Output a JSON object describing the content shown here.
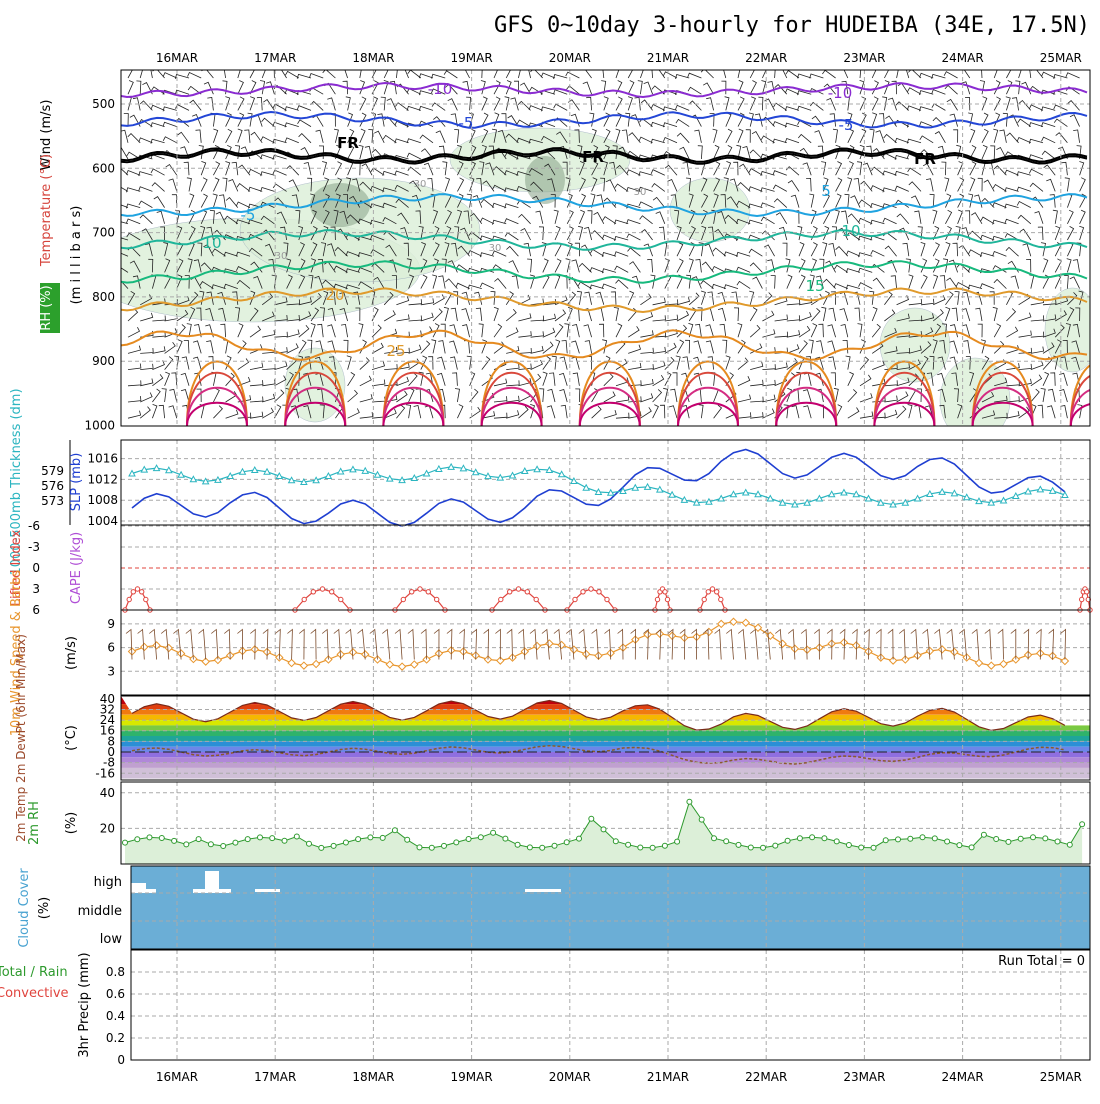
{
  "title": "GFS 0~10day 3-hourly for HUDEIBA (34E, 17.5N)",
  "top_dates": [
    "16MAR",
    "17MAR",
    "18MAR",
    "19MAR",
    "20MAR",
    "21MAR",
    "22MAR",
    "23MAR",
    "24MAR",
    "25MAR"
  ],
  "bottom_dates": [
    "16MAR",
    "17MAR",
    "18MAR",
    "19MAR",
    "20MAR",
    "21MAR",
    "22MAR",
    "23MAR",
    "24MAR",
    "25MAR"
  ],
  "panels": {
    "upper": {
      "ylabel_wind": "Wind (m/s)",
      "ylabel_temp": "Temperature (°C)",
      "ylabel_rh": "RH (%)",
      "ylabel_pressure": "(m i l l i b a r s)",
      "ticks": [
        "500",
        "600",
        "700",
        "800",
        "900",
        "1000"
      ],
      "contour_labels": [
        "-10",
        "-10",
        "-5",
        "-5",
        "FR",
        "FR",
        "FR",
        "5",
        "-5",
        "10",
        "10",
        "15",
        "20",
        "25",
        "30",
        "30",
        "30",
        "30"
      ]
    },
    "thickness": {
      "ylabel_left": "1000-500mb Thickness (dm)",
      "ylabel_right": "SLP (mb)",
      "ticks_left": [
        "579",
        "576",
        "573"
      ],
      "ticks_right": [
        "1016",
        "1012",
        "1008",
        "1004"
      ]
    },
    "stability": {
      "ylabel_left": "Lifted Index",
      "ylabel_right": "CAPE (J/kg)",
      "ticks": [
        "-6",
        "-3",
        "0",
        "3",
        "6"
      ]
    },
    "wind10m": {
      "ylabel": "10m Wind Speed & Barbs",
      "unit": "(m/s)",
      "ticks": [
        "9",
        "6",
        "3"
      ]
    },
    "temp2m": {
      "ylabel": "2m Temp 2m DewPt (6hr Min/Max)",
      "unit": "(°C)",
      "ticks": [
        "40",
        "32",
        "24",
        "16",
        "8",
        "0",
        "-8",
        "-16"
      ]
    },
    "rh2m": {
      "ylabel": "2m RH",
      "unit": "(%)",
      "ticks": [
        "40",
        "20"
      ]
    },
    "cloud": {
      "ylabel": "Cloud Cover",
      "unit": "(%)",
      "ticks": [
        "high",
        "middle",
        "low"
      ]
    },
    "precip": {
      "ylabel_total": "Total / Rain",
      "ylabel_conv": "Convective",
      "ylabel": "3hr Precip (mm)",
      "ticks": [
        "0.8",
        "0.6",
        "0.4",
        "0.2",
        "0"
      ],
      "run_total": "Run Total = 0"
    }
  },
  "colors": {
    "cloud_fill": "#6baed6",
    "slp_line": "#1f3fd1",
    "thickness_line": "#2bb5c0",
    "wind_line": "#e8962e",
    "li_line": "#e0443e",
    "rh_fill": "#dcefd8",
    "rh_line": "#2e9a2e"
  },
  "chart_data": [
    {
      "type": "line",
      "name": "1000-500mb Thickness / SLP",
      "x": [
        "16MAR",
        "17MAR",
        "18MAR",
        "19MAR",
        "20MAR",
        "21MAR",
        "22MAR",
        "23MAR",
        "24MAR",
        "25MAR"
      ],
      "series": [
        {
          "name": "SLP (mb)",
          "values": [
            1006.5,
            1007.5,
            1005.5,
            1005.5,
            1006.5,
            1010.5,
            1015.5,
            1014.5,
            1014.5,
            1011.0
          ]
        },
        {
          "name": "1000-500mb Thickness (dm)",
          "values": [
            578.5,
            578.0,
            578.0,
            578.5,
            579.0,
            575.0,
            573.5,
            573.5,
            573.5,
            574.0
          ]
        }
      ]
    },
    {
      "type": "line",
      "name": "Lifted Index",
      "x": [
        "16MAR",
        "17MAR",
        "18MAR",
        "19MAR",
        "20MAR",
        "21MAR",
        "22MAR",
        "23MAR",
        "24MAR",
        "25MAR"
      ],
      "series": [
        {
          "name": "Lifted Index",
          "values": [
            6,
            6,
            4.0,
            4.2,
            5.5,
            4.5,
            6,
            6,
            6,
            6
          ]
        }
      ],
      "ylim": [
        -6,
        6
      ]
    },
    {
      "type": "line",
      "name": "10m Wind Speed",
      "x": [
        "16MAR",
        "17MAR",
        "18MAR",
        "19MAR",
        "20MAR",
        "21MAR",
        "22MAR",
        "23MAR",
        "24MAR",
        "25MAR"
      ],
      "series": [
        {
          "name": "10m Wind Speed",
          "values": [
            5.5,
            5.0,
            4.5,
            4.5,
            5.5,
            6.0,
            9.0,
            6.0,
            5.0,
            4.5
          ]
        }
      ],
      "ylim": [
        0,
        10
      ]
    },
    {
      "type": "area",
      "name": "2m Temp",
      "x": [
        "16MAR",
        "17MAR",
        "18MAR",
        "19MAR",
        "20MAR",
        "21MAR",
        "22MAR",
        "23MAR",
        "24MAR",
        "25MAR"
      ],
      "series": [
        {
          "name": "2m Temp",
          "values": [
            29,
            30,
            31,
            31,
            32,
            31,
            21,
            25,
            27,
            22
          ]
        },
        {
          "name": "2m DewPt",
          "values": [
            1,
            -1,
            0,
            1,
            2,
            3,
            -8,
            -6,
            -4,
            0
          ]
        }
      ],
      "ylim": [
        -20,
        42
      ]
    },
    {
      "type": "area",
      "name": "2m RH",
      "x": [
        "16MAR",
        "17MAR",
        "18MAR",
        "19MAR",
        "20MAR",
        "21MAR",
        "22MAR",
        "23MAR",
        "24MAR",
        "25MAR"
      ],
      "series": [
        {
          "name": "2m RH",
          "values": [
            18,
            18,
            20,
            16,
            26,
            40,
            13,
            16,
            22,
            30
          ]
        }
      ],
      "ylim": [
        0,
        45
      ]
    },
    {
      "type": "bar",
      "name": "3hr Precip",
      "categories": [
        "16MAR",
        "17MAR",
        "18MAR",
        "19MAR",
        "20MAR",
        "21MAR",
        "22MAR",
        "23MAR",
        "24MAR",
        "25MAR"
      ],
      "values": [
        0,
        0,
        0,
        0,
        0,
        0,
        0,
        0,
        0,
        0
      ],
      "ylim": [
        0,
        0.9
      ]
    }
  ]
}
